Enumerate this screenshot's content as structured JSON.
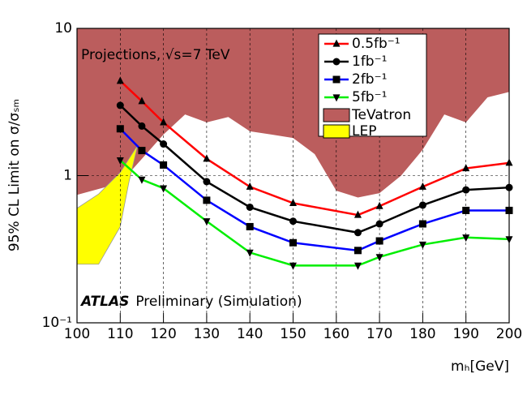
{
  "chart_data": {
    "type": "line",
    "ylabel": "95% CL Limit on σ/σₛₘ",
    "xlabel": "mₕ[GeV]",
    "annotations": [
      "Projections, √s=7 TeV",
      "ATLAS",
      "Preliminary (Simulation)"
    ],
    "x": [
      110,
      115,
      120,
      130,
      140,
      150,
      165,
      170,
      180,
      190,
      200
    ],
    "series": [
      {
        "name": "0.5fb⁻¹",
        "color": "#ff0000",
        "marker": "triangle-up",
        "values": [
          4.4,
          3.2,
          2.3,
          1.3,
          0.84,
          0.65,
          0.54,
          0.62,
          0.84,
          1.12,
          1.22
        ]
      },
      {
        "name": "1fb⁻¹",
        "color": "#000000",
        "marker": "circle",
        "values": [
          3.0,
          2.17,
          1.64,
          0.91,
          0.61,
          0.49,
          0.41,
          0.47,
          0.63,
          0.8,
          0.83
        ]
      },
      {
        "name": "2fb⁻¹",
        "color": "#0000ff",
        "marker": "square",
        "values": [
          2.08,
          1.48,
          1.18,
          0.68,
          0.45,
          0.35,
          0.31,
          0.36,
          0.47,
          0.58,
          0.58
        ]
      },
      {
        "name": "5fb⁻¹",
        "color": "#00ee00",
        "marker": "triangle-down",
        "values": [
          1.27,
          0.94,
          0.82,
          0.49,
          0.3,
          0.245,
          0.245,
          0.28,
          0.34,
          0.38,
          0.37
        ]
      }
    ],
    "regions": [
      {
        "name": "TeVatron",
        "color": "#bb5d5d",
        "fill_to": "top",
        "x": [
          100,
          110,
          115,
          120,
          125,
          130,
          135,
          140,
          145,
          150,
          155,
          160,
          165,
          170,
          175,
          180,
          185,
          190,
          195,
          200
        ],
        "values": [
          0.74,
          0.89,
          1.3,
          1.9,
          2.6,
          2.3,
          2.5,
          2.0,
          1.9,
          1.8,
          1.4,
          0.79,
          0.71,
          0.76,
          1.0,
          1.5,
          2.6,
          2.3,
          3.4,
          3.7
        ]
      },
      {
        "name": "LEP",
        "color": "#ffff00",
        "fill_to": "polygon",
        "x": [
          100,
          105,
          110,
          114,
          112,
          110,
          105,
          100
        ],
        "values": [
          0.6,
          0.75,
          1.05,
          1.6,
          0.9,
          0.45,
          0.25,
          0.25
        ]
      }
    ],
    "xlim": [
      100,
      200
    ],
    "ylim": [
      0.1,
      10
    ],
    "log_y": true,
    "grid": true,
    "xticks": [
      100,
      110,
      120,
      130,
      140,
      150,
      160,
      170,
      180,
      190,
      200
    ],
    "yticks": [
      {
        "value": 0.1,
        "label": "10⁻¹"
      },
      1,
      10
    ]
  }
}
